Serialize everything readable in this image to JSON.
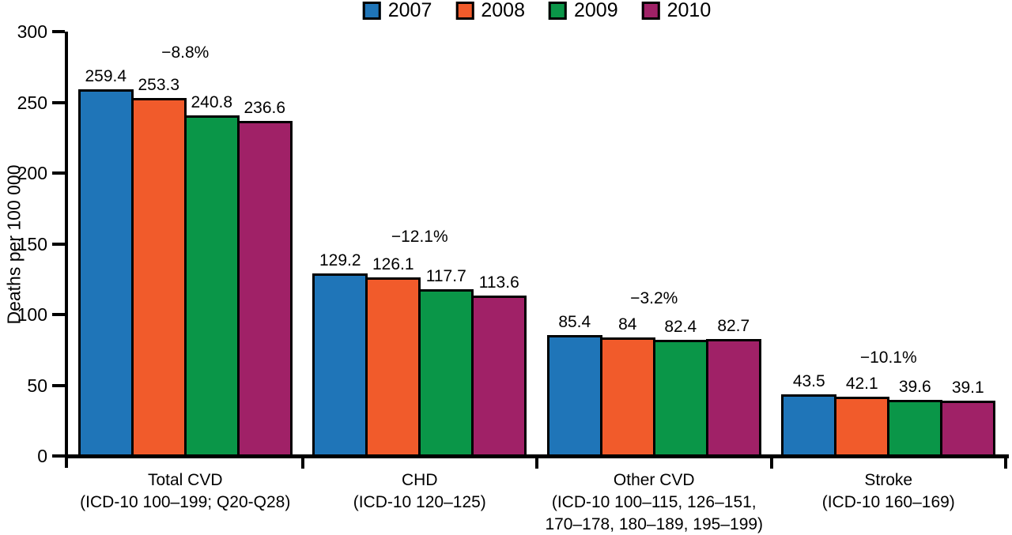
{
  "figure": {
    "background": "#ffffff",
    "axis_color": "#000000",
    "text_color": "#000000"
  },
  "chart_data": {
    "type": "bar",
    "title": "",
    "xlabel": "",
    "ylabel": "Deaths per 100 000",
    "ylim": [
      0,
      300
    ],
    "yticks": [
      0,
      50,
      100,
      150,
      200,
      250,
      300
    ],
    "grid": false,
    "legend_position": "top-center",
    "categories": [
      "Total CVD",
      "CHD",
      "Other CVD",
      "Stroke"
    ],
    "series": [
      {
        "name": "2007",
        "color": "#1F75B8",
        "values": [
          259.4,
          129.2,
          85.4,
          43.5
        ]
      },
      {
        "name": "2008",
        "color": "#F15B2B",
        "values": [
          253.3,
          126.1,
          84,
          42.1
        ]
      },
      {
        "name": "2009",
        "color": "#0A9648",
        "values": [
          240.8,
          117.7,
          82.4,
          39.6
        ]
      },
      {
        "name": "2010",
        "color": "#A02167",
        "values": [
          236.6,
          113.6,
          82.7,
          39.1
        ]
      }
    ],
    "groups": [
      {
        "percent_change": "−8.8%",
        "label_lines": [
          "Total CVD",
          "(ICD-10 100–199; Q20-Q28)"
        ]
      },
      {
        "percent_change": "−12.1%",
        "label_lines": [
          "CHD",
          "(ICD-10 120–125)"
        ]
      },
      {
        "percent_change": "−3.2%",
        "label_lines": [
          "Other CVD",
          "(ICD-10 100–115, 126–151,",
          "170–178, 180–189, 195–199)"
        ]
      },
      {
        "percent_change": "−10.1%",
        "label_lines": [
          "Stroke",
          "(ICD-10 160–169)"
        ]
      }
    ]
  }
}
